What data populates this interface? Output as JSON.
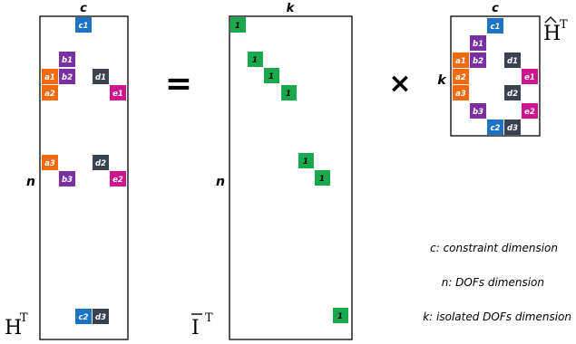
{
  "colors": {
    "a": "#f26a0f",
    "b": "#7a2fa3",
    "c": "#1c73c4",
    "d": "#3a4250",
    "e": "#cf1490",
    "one": "#1aa84e"
  },
  "matrix_HT": {
    "name": "H",
    "sup": "T",
    "col_label": "c",
    "row_label": "n",
    "cells": [
      "c1",
      "b1",
      "a1",
      "b2",
      "d1",
      "a2",
      "e1",
      "a3",
      "d2",
      "b3",
      "e2",
      "c2",
      "d3"
    ]
  },
  "operators": {
    "equals": "=",
    "times": "×"
  },
  "matrix_IT": {
    "name": "I",
    "sup": "T",
    "col_label": "k",
    "row_label": "n",
    "ones": [
      "1",
      "1",
      "1",
      "1",
      "1",
      "1",
      "1"
    ]
  },
  "matrix_HhatT": {
    "name": "H",
    "sup": "T",
    "col_label": "c",
    "row_label": "k",
    "cells": [
      "c1",
      "b1",
      "a1",
      "b2",
      "d1",
      "e1",
      "a2",
      "a3",
      "d2",
      "b3",
      "e2",
      "c2",
      "d3"
    ]
  },
  "legend": [
    "c: constraint dimension",
    "n: DOFs dimension",
    "k: isolated DOFs dimension"
  ]
}
